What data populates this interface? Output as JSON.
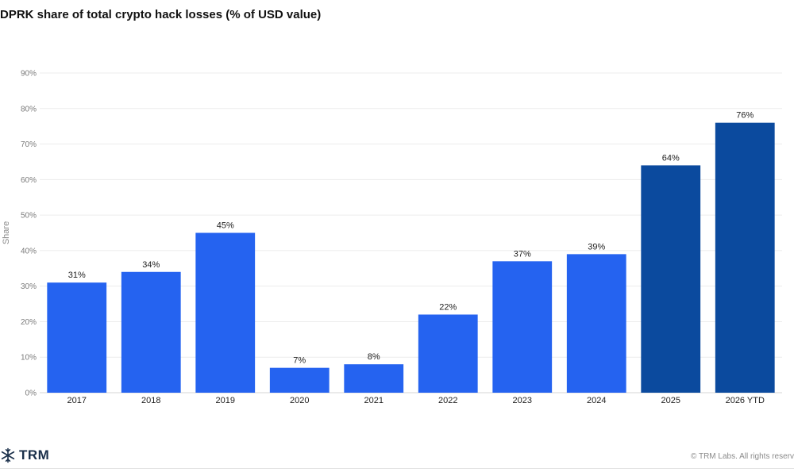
{
  "title": "DPRK share of total crypto hack losses (% of USD value)",
  "brand": {
    "name": "TRM",
    "icon": "snowflake-icon"
  },
  "copyright": "© TRM Labs. All rights reserv",
  "colors": {
    "bar": "#2563f0",
    "bar_highlight": "#0b4a9e",
    "grid": "#ececec"
  },
  "chart_data": {
    "type": "bar",
    "title": "DPRK share of total crypto hack losses (% of USD value)",
    "xlabel": "",
    "ylabel": "Share",
    "categories": [
      "2017",
      "2018",
      "2019",
      "2020",
      "2021",
      "2022",
      "2023",
      "2024",
      "2025",
      "2026 YTD"
    ],
    "values": [
      31,
      34,
      45,
      7,
      8,
      22,
      37,
      39,
      64,
      76
    ],
    "value_labels": [
      "31%",
      "34%",
      "45%",
      "7%",
      "8%",
      "22%",
      "37%",
      "39%",
      "64%",
      "76%"
    ],
    "highlight": [
      false,
      false,
      false,
      false,
      false,
      false,
      false,
      false,
      true,
      true
    ],
    "ylim": [
      0,
      90
    ],
    "yticks": [
      0,
      10,
      20,
      30,
      40,
      50,
      60,
      70,
      80,
      90
    ],
    "ytick_labels": [
      "0%",
      "10%",
      "20%",
      "30%",
      "40%",
      "50%",
      "60%",
      "70%",
      "80%",
      "90%"
    ],
    "grid": true,
    "legend": "none"
  }
}
